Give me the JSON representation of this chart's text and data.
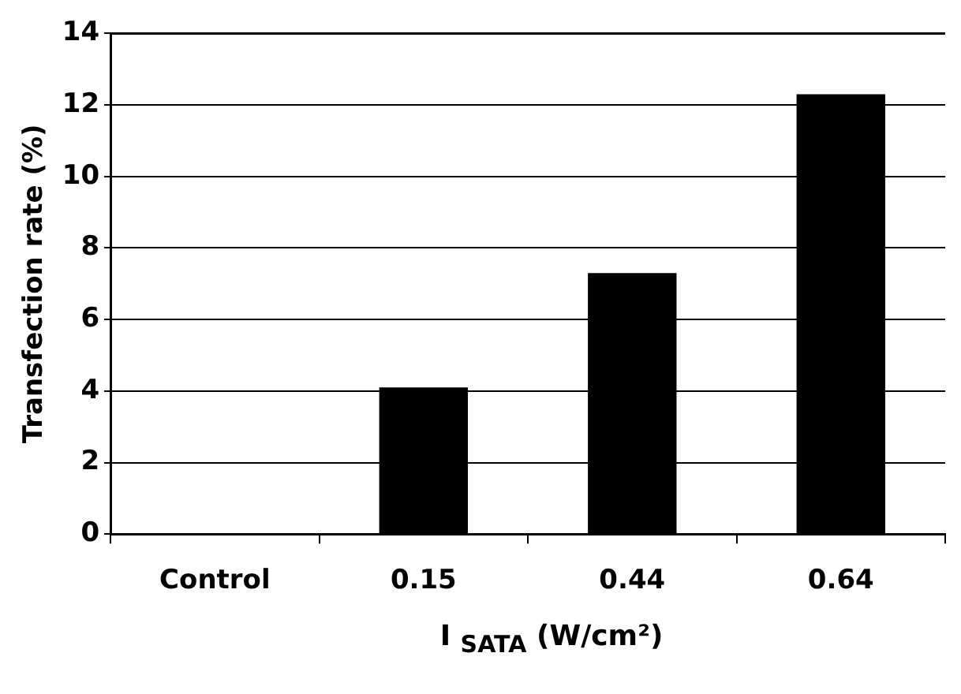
{
  "chart_data": {
    "type": "bar",
    "categories": [
      "Control",
      "0.15",
      "0.44",
      "0.64"
    ],
    "values": [
      0,
      4.1,
      7.3,
      12.3
    ],
    "color": "#000000",
    "ylabel": "Transfection rate (%)",
    "xlabel": "I $_{SATA}$  (W/cm²)",
    "ylim": [
      0,
      14
    ],
    "yticks": [
      0,
      2,
      4,
      6,
      8,
      10,
      12,
      14
    ],
    "grid": "y",
    "legend": false
  }
}
